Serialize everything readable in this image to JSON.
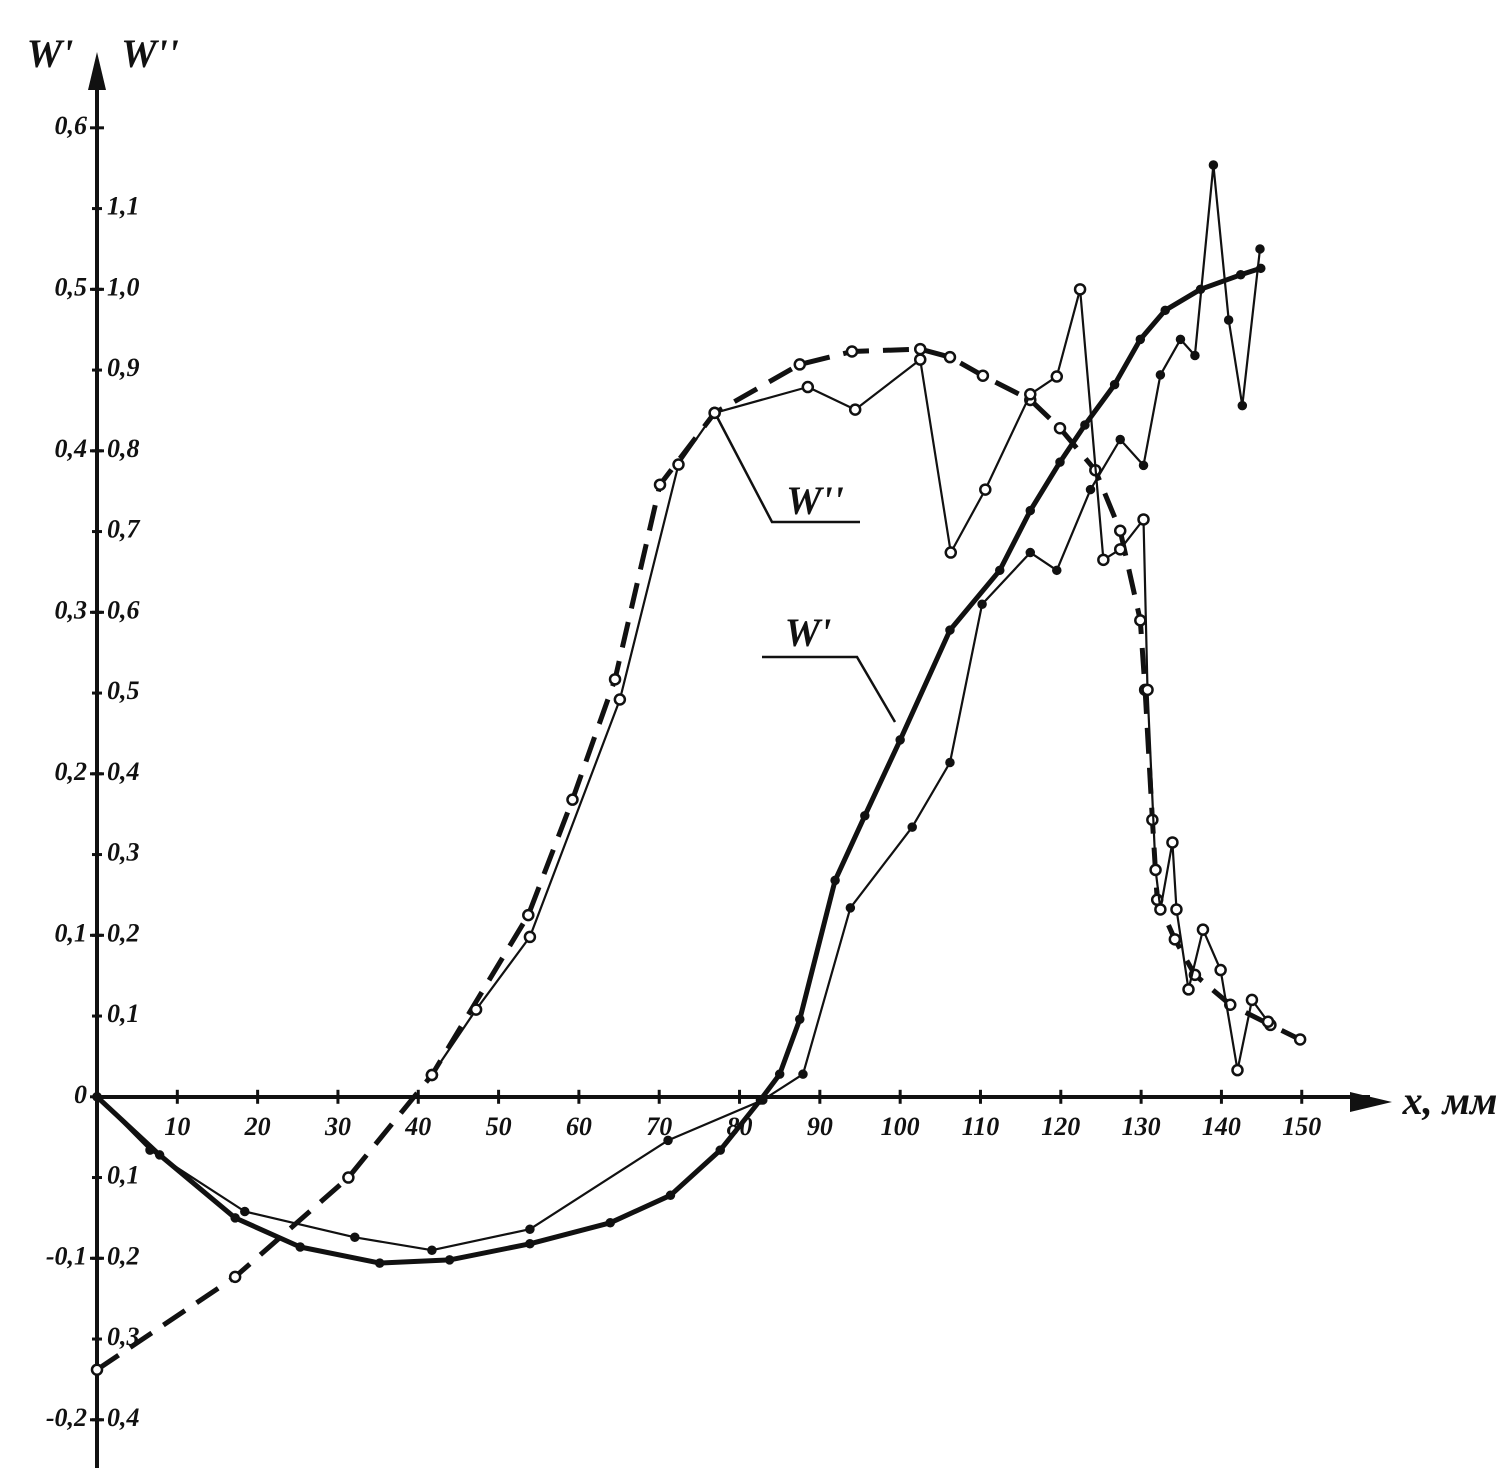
{
  "chart_data": {
    "type": "line",
    "y_axis_label": "W'",
    "y2_axis_label": "W''",
    "x_axis_label": "x, мм",
    "annotations": [
      "W''",
      "W'"
    ],
    "xlim": [
      0,
      158
    ],
    "ylim": [
      -0.228,
      0.642
    ],
    "y2lim": [
      -0.456,
      1.284
    ],
    "xticks": [
      10,
      20,
      30,
      40,
      50,
      60,
      70,
      80,
      90,
      100,
      110,
      120,
      130,
      140,
      150
    ],
    "yticks": [
      {
        "value": -0.2,
        "label": "-0,2"
      },
      {
        "value": -0.1,
        "label": "-0,1"
      },
      0,
      {
        "value": 0.1,
        "label": "0,1"
      },
      {
        "value": 0.2,
        "label": "0,2"
      },
      {
        "value": 0.3,
        "label": "0,3"
      },
      {
        "value": 0.4,
        "label": "0,4"
      },
      {
        "value": 0.5,
        "label": "0,5"
      },
      {
        "value": 0.6,
        "label": "0,6"
      }
    ],
    "y2ticks": [
      {
        "value": -0.4,
        "label": "0,4"
      },
      {
        "value": -0.3,
        "label": "0,3"
      },
      {
        "value": -0.2,
        "label": "0,2"
      },
      {
        "value": -0.1,
        "label": "0,1"
      },
      {
        "value": 0.1,
        "label": "0,1"
      },
      {
        "value": 0.2,
        "label": "0,2"
      },
      {
        "value": 0.3,
        "label": "0,3"
      },
      {
        "value": 0.4,
        "label": "0,4"
      },
      {
        "value": 0.5,
        "label": "0,5"
      },
      {
        "value": 0.6,
        "label": "0,6"
      },
      {
        "value": 0.7,
        "label": "0,7"
      },
      {
        "value": 0.8,
        "label": "0,8"
      },
      {
        "value": 0.9,
        "label": "0,9"
      },
      {
        "value": 1.0,
        "label": "1,0"
      },
      {
        "value": 1.1,
        "label": "1,1"
      }
    ],
    "grid": false,
    "series": [
      {
        "color": "#111",
        "axis": "y2",
        "line_style": "dashed",
        "marker": "open-circle",
        "x": [
          0,
          17.2,
          31.3,
          41.7,
          53.7,
          59.2,
          64.5,
          70.1,
          76.9,
          87.5,
          94.0,
          102.5,
          106.2,
          110.3,
          116.2,
          119.9,
          124.3,
          127.4,
          129.9,
          130.5,
          131.4,
          132.0,
          134.2,
          136.7,
          141.1,
          146.1,
          149.8
        ],
        "values": [
          -0.338,
          -0.223,
          -0.1,
          0.027,
          0.225,
          0.368,
          0.517,
          0.758,
          0.847,
          0.907,
          0.923,
          0.926,
          0.916,
          0.893,
          0.863,
          0.828,
          0.776,
          0.701,
          0.59,
          0.504,
          0.343,
          0.244,
          0.195,
          0.151,
          0.114,
          0.089,
          0.071
        ]
      },
      {
        "color": "#111",
        "axis": "y2",
        "line_style": "thin",
        "marker": "open-circle",
        "x": [
          41.7,
          47.2,
          53.9,
          65.1,
          72.4,
          76.9,
          88.5,
          94.4,
          102.5,
          106.3,
          110.6,
          116.2,
          119.5,
          122.4,
          125.3,
          127.4,
          130.3,
          130.8,
          131.8,
          132.4,
          133.9,
          134.4,
          135.9,
          137.7,
          139.9,
          142.0,
          143.8,
          145.8
        ],
        "values": [
          0.027,
          0.108,
          0.198,
          0.492,
          0.783,
          0.847,
          0.879,
          0.851,
          0.913,
          0.674,
          0.752,
          0.87,
          0.892,
          1.0,
          0.665,
          0.678,
          0.715,
          0.504,
          0.281,
          0.232,
          0.315,
          0.232,
          0.133,
          0.207,
          0.157,
          0.033,
          0.12,
          0.093
        ]
      },
      {
        "color": "#111",
        "axis": "y",
        "line_style": "bold",
        "marker": "dot",
        "x": [
          0,
          7.8,
          17.2,
          25.3,
          35.2,
          43.9,
          53.9,
          63.9,
          71.4,
          77.6,
          82.6,
          85.0,
          87.5,
          91.9,
          95.6,
          100.0,
          106.2,
          112.4,
          116.2,
          119.9,
          123.0,
          126.7,
          129.9,
          133.0,
          137.4,
          142.4,
          144.9
        ],
        "values": [
          0,
          -0.036,
          -0.075,
          -0.093,
          -0.103,
          -0.101,
          -0.091,
          -0.078,
          -0.061,
          -0.033,
          -0.002,
          0.014,
          0.048,
          0.134,
          0.174,
          0.221,
          0.289,
          0.326,
          0.363,
          0.393,
          0.416,
          0.441,
          0.469,
          0.487,
          0.5,
          0.509,
          0.513
        ]
      },
      {
        "color": "#111",
        "axis": "y",
        "line_style": "thin",
        "marker": "dot",
        "x": [
          0,
          6.6,
          18.4,
          32.1,
          41.7,
          53.9,
          71.1,
          82.9,
          87.9,
          93.8,
          101.5,
          106.2,
          110.2,
          116.2,
          119.5,
          123.7,
          127.4,
          130.3,
          132.4,
          134.9,
          136.7,
          139.0,
          140.9,
          142.6,
          144.8
        ],
        "values": [
          0,
          -0.033,
          -0.071,
          -0.087,
          -0.095,
          -0.082,
          -0.027,
          -0.002,
          0.014,
          0.117,
          0.167,
          0.207,
          0.305,
          0.337,
          0.326,
          0.376,
          0.407,
          0.391,
          0.447,
          0.469,
          0.459,
          0.577,
          0.481,
          0.428,
          0.525
        ]
      }
    ]
  }
}
